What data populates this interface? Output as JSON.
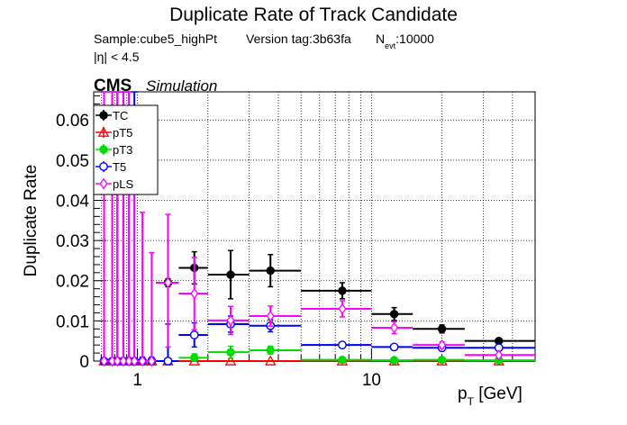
{
  "chart_data": {
    "type": "scatter",
    "title": "Duplicate Rate of Track Candidate",
    "subtitle": {
      "sample": "Sample:cube5_highPt",
      "version": "Version tag:3b63fa",
      "nevt_symbol": "N",
      "nevt_sub": "evt",
      "nevt_value": ":10000",
      "eta_cut": "|η| < 4.5"
    },
    "cms_label": "CMS",
    "simulation_label": "Simulation",
    "ylabel": "Duplicate Rate",
    "xlabel": {
      "main": "p",
      "sub": "T",
      "unit": " [GeV]"
    },
    "x_scale": "log",
    "xlim": [
      0.65,
      50
    ],
    "ylim": [
      0,
      0.067
    ],
    "y_ticks": [
      0,
      0.01,
      0.02,
      0.03,
      0.04,
      0.05,
      0.06
    ],
    "y_tick_labels": [
      "0",
      "0.01",
      "0.02",
      "0.03",
      "0.04",
      "0.05",
      "0.06"
    ],
    "x_ticks": [
      1,
      10
    ],
    "x_tick_labels": [
      "1",
      "10"
    ],
    "grid": true,
    "legend_position": "top-left",
    "series": [
      {
        "name": "TC",
        "color": "#000000",
        "marker": "filled-circle",
        "points": [
          {
            "x": 0.72,
            "xlo": 0.7,
            "xhi": 0.75,
            "y": 0,
            "ylo": 0,
            "yhi": 0
          },
          {
            "x": 0.78,
            "xlo": 0.75,
            "xhi": 0.8,
            "y": 0,
            "ylo": 0,
            "yhi": 0
          },
          {
            "x": 0.82,
            "xlo": 0.8,
            "xhi": 0.85,
            "y": 0,
            "ylo": 0,
            "yhi": 0
          },
          {
            "x": 0.87,
            "xlo": 0.85,
            "xhi": 0.9,
            "y": 0,
            "ylo": 0,
            "yhi": 0
          },
          {
            "x": 0.92,
            "xlo": 0.9,
            "xhi": 0.95,
            "y": 0,
            "ylo": 0,
            "yhi": 0
          },
          {
            "x": 0.97,
            "xlo": 0.95,
            "xhi": 1.0,
            "y": 0,
            "ylo": 0,
            "yhi": 0
          },
          {
            "x": 1.05,
            "xlo": 1.0,
            "xhi": 1.1,
            "y": 0,
            "ylo": 0,
            "yhi": 0
          },
          {
            "x": 1.15,
            "xlo": 1.1,
            "xhi": 1.2,
            "y": 0,
            "ylo": 0,
            "yhi": 0
          },
          {
            "x": 1.35,
            "xlo": 1.2,
            "xhi": 1.5,
            "y": 0.0195,
            "ylo": 0.0185,
            "yhi": 0.0205
          },
          {
            "x": 1.75,
            "xlo": 1.5,
            "xhi": 2.0,
            "y": 0.0232,
            "ylo": 0.0192,
            "yhi": 0.0272
          },
          {
            "x": 2.5,
            "xlo": 2.0,
            "xhi": 3.0,
            "y": 0.0215,
            "ylo": 0.0155,
            "yhi": 0.0275
          },
          {
            "x": 3.7,
            "xlo": 3.0,
            "xhi": 5.0,
            "y": 0.0225,
            "ylo": 0.0185,
            "yhi": 0.0265
          },
          {
            "x": 7.5,
            "xlo": 5.0,
            "xhi": 10.0,
            "y": 0.0175,
            "ylo": 0.0155,
            "yhi": 0.0195
          },
          {
            "x": 12.5,
            "xlo": 10.0,
            "xhi": 15.0,
            "y": 0.0117,
            "ylo": 0.0101,
            "yhi": 0.0133
          },
          {
            "x": 20.0,
            "xlo": 15.0,
            "xhi": 25.0,
            "y": 0.008,
            "ylo": 0.007,
            "yhi": 0.009
          },
          {
            "x": 35.0,
            "xlo": 25.0,
            "xhi": 50.0,
            "y": 0.005,
            "ylo": 0.0045,
            "yhi": 0.0055
          }
        ]
      },
      {
        "name": "pT5",
        "color": "#ff0000",
        "marker": "open-triangle",
        "points": [
          {
            "x": 0.72,
            "xlo": 0.7,
            "xhi": 0.75,
            "y": 0,
            "ylo": 0,
            "yhi": 0
          },
          {
            "x": 0.78,
            "xlo": 0.75,
            "xhi": 0.8,
            "y": 0,
            "ylo": 0,
            "yhi": 0
          },
          {
            "x": 0.82,
            "xlo": 0.8,
            "xhi": 0.85,
            "y": 0,
            "ylo": 0,
            "yhi": 0
          },
          {
            "x": 0.87,
            "xlo": 0.85,
            "xhi": 0.9,
            "y": 0,
            "ylo": 0,
            "yhi": 0
          },
          {
            "x": 0.92,
            "xlo": 0.9,
            "xhi": 0.95,
            "y": 0,
            "ylo": 0,
            "yhi": 0
          },
          {
            "x": 0.97,
            "xlo": 0.95,
            "xhi": 1.0,
            "y": 0,
            "ylo": 0,
            "yhi": 0
          },
          {
            "x": 1.05,
            "xlo": 1.0,
            "xhi": 1.1,
            "y": 0,
            "ylo": 0,
            "yhi": 0
          },
          {
            "x": 1.15,
            "xlo": 1.1,
            "xhi": 1.2,
            "y": 0,
            "ylo": 0,
            "yhi": 0
          },
          {
            "x": 1.35,
            "xlo": 1.2,
            "xhi": 1.5,
            "y": 0,
            "ylo": 0,
            "yhi": 0
          },
          {
            "x": 1.75,
            "xlo": 1.5,
            "xhi": 2.0,
            "y": 0,
            "ylo": 0,
            "yhi": 0
          },
          {
            "x": 2.5,
            "xlo": 2.0,
            "xhi": 3.0,
            "y": 0,
            "ylo": 0,
            "yhi": 0
          },
          {
            "x": 3.7,
            "xlo": 3.0,
            "xhi": 5.0,
            "y": 0,
            "ylo": 0,
            "yhi": 0
          },
          {
            "x": 7.5,
            "xlo": 5.0,
            "xhi": 10.0,
            "y": 0,
            "ylo": 0,
            "yhi": 0
          },
          {
            "x": 12.5,
            "xlo": 10.0,
            "xhi": 15.0,
            "y": 0,
            "ylo": 0,
            "yhi": 0
          },
          {
            "x": 20.0,
            "xlo": 15.0,
            "xhi": 25.0,
            "y": 0,
            "ylo": 0,
            "yhi": 0
          },
          {
            "x": 35.0,
            "xlo": 25.0,
            "xhi": 50.0,
            "y": 0,
            "ylo": 0,
            "yhi": 0
          }
        ]
      },
      {
        "name": "pT3",
        "color": "#00dd00",
        "marker": "filled-circle",
        "points": [
          {
            "x": 0.72,
            "xlo": 0.7,
            "xhi": 0.75,
            "y": 0,
            "ylo": 0,
            "yhi": 0
          },
          {
            "x": 0.78,
            "xlo": 0.75,
            "xhi": 0.8,
            "y": 0,
            "ylo": 0,
            "yhi": 0
          },
          {
            "x": 0.82,
            "xlo": 0.8,
            "xhi": 0.85,
            "y": 0,
            "ylo": 0,
            "yhi": 0
          },
          {
            "x": 0.87,
            "xlo": 0.85,
            "xhi": 0.9,
            "y": 0,
            "ylo": 0,
            "yhi": 0
          },
          {
            "x": 0.92,
            "xlo": 0.9,
            "xhi": 0.95,
            "y": 0,
            "ylo": 0,
            "yhi": 0
          },
          {
            "x": 0.97,
            "xlo": 0.95,
            "xhi": 1.0,
            "y": 0,
            "ylo": 0,
            "yhi": 0
          },
          {
            "x": 1.05,
            "xlo": 1.0,
            "xhi": 1.1,
            "y": 0,
            "ylo": 0,
            "yhi": 0
          },
          {
            "x": 1.15,
            "xlo": 1.1,
            "xhi": 1.2,
            "y": 0,
            "ylo": 0,
            "yhi": 0
          },
          {
            "x": 1.35,
            "xlo": 1.2,
            "xhi": 1.5,
            "y": 0,
            "ylo": 0,
            "yhi": 0
          },
          {
            "x": 1.75,
            "xlo": 1.5,
            "xhi": 2.0,
            "y": 0.0008,
            "ylo": 0,
            "yhi": 0.0018
          },
          {
            "x": 2.5,
            "xlo": 2.0,
            "xhi": 3.0,
            "y": 0.0022,
            "ylo": 0.0007,
            "yhi": 0.0037
          },
          {
            "x": 3.7,
            "xlo": 3.0,
            "xhi": 5.0,
            "y": 0.0027,
            "ylo": 0.0017,
            "yhi": 0.0037
          },
          {
            "x": 7.5,
            "xlo": 5.0,
            "xhi": 10.0,
            "y": 0.0003,
            "ylo": 0,
            "yhi": 0.0008
          },
          {
            "x": 12.5,
            "xlo": 10.0,
            "xhi": 15.0,
            "y": 0.0002,
            "ylo": 0,
            "yhi": 0.0006
          },
          {
            "x": 20.0,
            "xlo": 15.0,
            "xhi": 25.0,
            "y": 0.0003,
            "ylo": 0,
            "yhi": 0.0007
          },
          {
            "x": 35.0,
            "xlo": 25.0,
            "xhi": 50.0,
            "y": 0.0002,
            "ylo": 0,
            "yhi": 0.0005
          }
        ]
      },
      {
        "name": "T5",
        "color": "#0000ff",
        "marker": "open-circle",
        "points": [
          {
            "x": 0.72,
            "xlo": 0.7,
            "xhi": 0.75,
            "y": 0,
            "ylo": 0,
            "yhi": 0.067
          },
          {
            "x": 0.78,
            "xlo": 0.75,
            "xhi": 0.8,
            "y": 0,
            "ylo": 0,
            "yhi": 0.067
          },
          {
            "x": 0.82,
            "xlo": 0.8,
            "xhi": 0.85,
            "y": 0,
            "ylo": 0,
            "yhi": 0.067
          },
          {
            "x": 0.87,
            "xlo": 0.85,
            "xhi": 0.9,
            "y": 0,
            "ylo": 0,
            "yhi": 0.067
          },
          {
            "x": 0.92,
            "xlo": 0.9,
            "xhi": 0.95,
            "y": 0,
            "ylo": 0,
            "yhi": 0.067
          },
          {
            "x": 0.97,
            "xlo": 0.95,
            "xhi": 1.0,
            "y": 0,
            "ylo": 0,
            "yhi": 0.067
          },
          {
            "x": 1.05,
            "xlo": 1.0,
            "xhi": 1.1,
            "y": 0,
            "ylo": 0,
            "yhi": 0.001
          },
          {
            "x": 1.15,
            "xlo": 1.1,
            "xhi": 1.2,
            "y": 0,
            "ylo": 0,
            "yhi": 0.001
          },
          {
            "x": 1.35,
            "xlo": 1.2,
            "xhi": 1.5,
            "y": 0,
            "ylo": 0,
            "yhi": 0.0092
          },
          {
            "x": 1.75,
            "xlo": 1.5,
            "xhi": 2.0,
            "y": 0.0065,
            "ylo": 0.0035,
            "yhi": 0.0095
          },
          {
            "x": 2.5,
            "xlo": 2.0,
            "xhi": 3.0,
            "y": 0.0092,
            "ylo": 0.0072,
            "yhi": 0.0112
          },
          {
            "x": 3.7,
            "xlo": 3.0,
            "xhi": 5.0,
            "y": 0.0088,
            "ylo": 0.0073,
            "yhi": 0.0103
          },
          {
            "x": 7.5,
            "xlo": 5.0,
            "xhi": 10.0,
            "y": 0.004,
            "ylo": 0.0033,
            "yhi": 0.0047
          },
          {
            "x": 12.5,
            "xlo": 10.0,
            "xhi": 15.0,
            "y": 0.0035,
            "ylo": 0.0029,
            "yhi": 0.0041
          },
          {
            "x": 20.0,
            "xlo": 15.0,
            "xhi": 25.0,
            "y": 0.0033,
            "ylo": 0.0027,
            "yhi": 0.0039
          },
          {
            "x": 35.0,
            "xlo": 25.0,
            "xhi": 50.0,
            "y": 0.0033,
            "ylo": 0.0028,
            "yhi": 0.0038
          }
        ]
      },
      {
        "name": "pLS",
        "color": "#ff00ff",
        "marker": "open-diamond",
        "points": [
          {
            "x": 0.72,
            "xlo": 0.7,
            "xhi": 0.75,
            "y": 0,
            "ylo": 0,
            "yhi": 0.067
          },
          {
            "x": 0.78,
            "xlo": 0.75,
            "xhi": 0.8,
            "y": 0,
            "ylo": 0,
            "yhi": 0.067
          },
          {
            "x": 0.82,
            "xlo": 0.8,
            "xhi": 0.85,
            "y": 0,
            "ylo": 0,
            "yhi": 0.067
          },
          {
            "x": 0.87,
            "xlo": 0.85,
            "xhi": 0.9,
            "y": 0,
            "ylo": 0,
            "yhi": 0.067
          },
          {
            "x": 0.92,
            "xlo": 0.9,
            "xhi": 0.95,
            "y": 0,
            "ylo": 0,
            "yhi": 0.067
          },
          {
            "x": 0.97,
            "xlo": 0.95,
            "xhi": 1.0,
            "y": 0,
            "ylo": 0,
            "yhi": 0.062
          },
          {
            "x": 1.05,
            "xlo": 1.0,
            "xhi": 1.1,
            "y": 0,
            "ylo": 0,
            "yhi": 0.037
          },
          {
            "x": 1.15,
            "xlo": 1.1,
            "xhi": 1.2,
            "y": 0,
            "ylo": 0,
            "yhi": 0.027
          },
          {
            "x": 1.35,
            "xlo": 1.2,
            "xhi": 1.5,
            "y": 0.0195,
            "ylo": 0.0035,
            "yhi": 0.0365
          },
          {
            "x": 1.75,
            "xlo": 1.5,
            "xhi": 2.0,
            "y": 0.0168,
            "ylo": 0.0078,
            "yhi": 0.0258
          },
          {
            "x": 2.5,
            "xlo": 2.0,
            "xhi": 3.0,
            "y": 0.0101,
            "ylo": 0.0066,
            "yhi": 0.0136
          },
          {
            "x": 3.7,
            "xlo": 3.0,
            "xhi": 5.0,
            "y": 0.0112,
            "ylo": 0.0087,
            "yhi": 0.0137
          },
          {
            "x": 7.5,
            "xlo": 5.0,
            "xhi": 10.0,
            "y": 0.013,
            "ylo": 0.011,
            "yhi": 0.015
          },
          {
            "x": 12.5,
            "xlo": 10.0,
            "xhi": 15.0,
            "y": 0.0083,
            "ylo": 0.0068,
            "yhi": 0.0098
          },
          {
            "x": 20.0,
            "xlo": 15.0,
            "xhi": 25.0,
            "y": 0.004,
            "ylo": 0.0032,
            "yhi": 0.0048
          },
          {
            "x": 35.0,
            "xlo": 25.0,
            "xhi": 50.0,
            "y": 0.0015,
            "ylo": 0.0011,
            "yhi": 0.0019
          }
        ]
      }
    ]
  }
}
